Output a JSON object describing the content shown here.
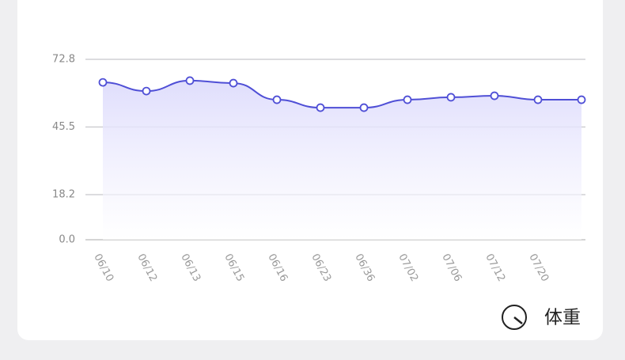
{
  "chart_data": {
    "type": "line",
    "categories": [
      "06/10",
      "06/12",
      "06/13",
      "06/15",
      "06/16",
      "06/23",
      "06/36",
      "07/02",
      "07/06",
      "07/12",
      "07/20",
      null
    ],
    "series": [
      {
        "name": "体重",
        "color": "#4f4fd6",
        "values": [
          63.5,
          60.0,
          64.2,
          63.2,
          56.5,
          53.3,
          53.3,
          56.5,
          57.5,
          58.1,
          56.5,
          56.5
        ]
      }
    ],
    "ylim": [
      0,
      72.8
    ],
    "yticks": [
      {
        "value": 0,
        "label": "0.0"
      },
      18.2,
      45.5,
      72.8
    ],
    "grid": true
  }
}
